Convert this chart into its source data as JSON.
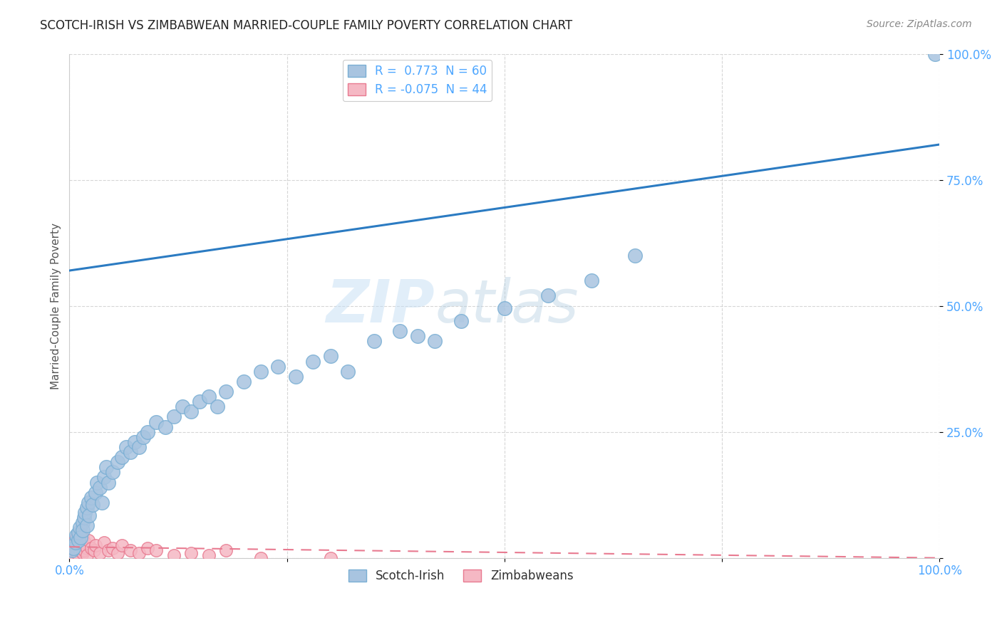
{
  "title": "SCOTCH-IRISH VS ZIMBABWEAN MARRIED-COUPLE FAMILY POVERTY CORRELATION CHART",
  "source": "Source: ZipAtlas.com",
  "ylabel": "Married-Couple Family Poverty",
  "xlim": [
    0,
    100
  ],
  "ylim": [
    0,
    100
  ],
  "xticks": [
    0,
    25,
    50,
    75,
    100
  ],
  "yticks": [
    0,
    25,
    50,
    75,
    100
  ],
  "xticklabels": [
    "0.0%",
    "",
    "",
    "",
    "100.0%"
  ],
  "yticklabels": [
    "",
    "25.0%",
    "50.0%",
    "75.0%",
    "100.0%"
  ],
  "scotch_irish_R": 0.773,
  "scotch_irish_N": 60,
  "zimbabwean_R": -0.075,
  "zimbabwean_N": 44,
  "scotch_irish_color": "#a8c4e0",
  "scotch_irish_edge": "#7aafd4",
  "zimbabwean_color": "#f5b8c4",
  "zimbabwean_edge": "#e87a90",
  "trend_blue_color": "#2b7bc2",
  "trend_pink_color": "#e87a90",
  "watermark_zip": "ZIP",
  "watermark_atlas": "atlas",
  "background_color": "#ffffff",
  "grid_color": "#cccccc",
  "tick_color": "#4da6ff",
  "scotch_irish_x": [
    0.3,
    0.5,
    0.7,
    0.8,
    1.0,
    1.0,
    1.2,
    1.3,
    1.5,
    1.5,
    1.7,
    1.8,
    2.0,
    2.0,
    2.2,
    2.3,
    2.5,
    2.7,
    3.0,
    3.2,
    3.5,
    3.7,
    4.0,
    4.2,
    4.5,
    5.0,
    5.5,
    6.0,
    6.5,
    7.0,
    7.5,
    8.0,
    8.5,
    9.0,
    10.0,
    11.0,
    12.0,
    13.0,
    14.0,
    15.0,
    16.0,
    17.0,
    18.0,
    20.0,
    22.0,
    24.0,
    26.0,
    28.0,
    30.0,
    32.0,
    35.0,
    38.0,
    40.0,
    42.0,
    45.0,
    50.0,
    55.0,
    60.0,
    65.0,
    99.5
  ],
  "scotch_irish_y": [
    1.5,
    2.0,
    3.0,
    4.5,
    3.5,
    5.0,
    6.0,
    4.0,
    7.0,
    5.5,
    8.0,
    9.0,
    6.5,
    10.0,
    11.0,
    8.5,
    12.0,
    10.5,
    13.0,
    15.0,
    14.0,
    11.0,
    16.0,
    18.0,
    15.0,
    17.0,
    19.0,
    20.0,
    22.0,
    21.0,
    23.0,
    22.0,
    24.0,
    25.0,
    27.0,
    26.0,
    28.0,
    30.0,
    29.0,
    31.0,
    32.0,
    30.0,
    33.0,
    35.0,
    37.0,
    38.0,
    36.0,
    39.0,
    40.0,
    37.0,
    43.0,
    45.0,
    44.0,
    43.0,
    47.0,
    49.5,
    52.0,
    55.0,
    60.0,
    100.0
  ],
  "zimbabwean_x": [
    0.1,
    0.2,
    0.3,
    0.4,
    0.5,
    0.5,
    0.6,
    0.7,
    0.8,
    0.8,
    0.9,
    1.0,
    1.0,
    1.1,
    1.2,
    1.3,
    1.4,
    1.5,
    1.5,
    1.6,
    1.7,
    1.8,
    2.0,
    2.0,
    2.2,
    2.5,
    2.8,
    3.0,
    3.5,
    4.0,
    4.5,
    5.0,
    5.5,
    6.0,
    7.0,
    8.0,
    9.0,
    10.0,
    12.0,
    14.0,
    16.0,
    18.0,
    22.0,
    30.0
  ],
  "zimbabwean_y": [
    2.5,
    1.0,
    3.0,
    2.0,
    1.5,
    0.0,
    3.5,
    1.5,
    2.0,
    4.0,
    1.0,
    3.0,
    0.5,
    2.5,
    1.5,
    3.5,
    2.0,
    1.0,
    4.0,
    2.5,
    1.5,
    3.0,
    2.0,
    0.5,
    3.5,
    2.0,
    1.5,
    2.5,
    1.0,
    3.0,
    1.5,
    2.0,
    1.0,
    2.5,
    1.5,
    1.0,
    2.0,
    1.5,
    0.5,
    1.0,
    0.5,
    1.5,
    0.0,
    0.0
  ],
  "trend_blue_x0": 0,
  "trend_blue_y0": 57,
  "trend_blue_x1": 100,
  "trend_blue_y1": 82,
  "trend_pink_x0": 0,
  "trend_pink_y0": 2.2,
  "trend_pink_x1": 100,
  "trend_pink_y1": 0.0
}
